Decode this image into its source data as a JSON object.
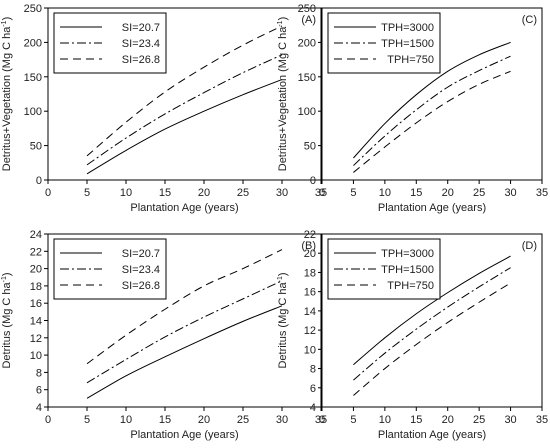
{
  "chart_data": [
    {
      "panel_label": "(A)",
      "type": "line",
      "xlabel": "Plantation Age (years)",
      "ylabel": "Detritus+Vegetation  (Mg C ha⁻¹)",
      "xlim": [
        0,
        35
      ],
      "ylim": [
        0,
        250
      ],
      "xticks": [
        "0",
        "5",
        "10",
        "15",
        "20",
        "25",
        "30",
        "35"
      ],
      "yticks": [
        "0",
        "50",
        "100",
        "150",
        "200",
        "250"
      ],
      "grid": false,
      "legend": "top-left",
      "x": [
        5,
        10,
        15,
        20,
        25,
        30
      ],
      "series": [
        {
          "name": "SI=20.7",
          "dash": "solid",
          "values": [
            9,
            43,
            74,
            100,
            124,
            146
          ]
        },
        {
          "name": "SI=23.4",
          "dash": "dashdot",
          "values": [
            22,
            61,
            96,
            127,
            156,
            182
          ]
        },
        {
          "name": "SI=26.8",
          "dash": "dashed",
          "values": [
            35,
            84,
            128,
            164,
            196,
            224
          ]
        }
      ]
    },
    {
      "panel_label": "(C)",
      "type": "line",
      "xlabel": "Plantation Age (years)",
      "ylabel": "Detritus+Vegetation  (Mg C ha⁻¹)",
      "xlim": [
        0,
        35
      ],
      "ylim": [
        0,
        250
      ],
      "xticks": [
        "0",
        "5",
        "10",
        "15",
        "20",
        "25",
        "30",
        "35"
      ],
      "yticks": [
        "0",
        "50",
        "100",
        "150",
        "200",
        "250"
      ],
      "grid": false,
      "legend": "top-left",
      "x": [
        5,
        10,
        15,
        20,
        25,
        30
      ],
      "series": [
        {
          "name": "TPH=3000",
          "dash": "solid",
          "values": [
            32,
            82,
            124,
            158,
            182,
            200
          ]
        },
        {
          "name": "TPH=1500",
          "dash": "dashdot",
          "values": [
            21,
            64,
            102,
            135,
            159,
            180
          ]
        },
        {
          "name": "TPH=750",
          "dash": "dashed",
          "values": [
            11,
            48,
            83,
            114,
            139,
            158
          ]
        }
      ]
    },
    {
      "panel_label": "(B)",
      "type": "line",
      "xlabel": "Plantation Age (years)",
      "ylabel": "Detritus (Mg C ha⁻¹)",
      "xlim": [
        0,
        35
      ],
      "ylim": [
        4,
        24
      ],
      "xticks": [
        "0",
        "5",
        "10",
        "15",
        "20",
        "25",
        "30",
        "35"
      ],
      "yticks": [
        "4",
        "6",
        "8",
        "10",
        "12",
        "14",
        "16",
        "18",
        "20",
        "22",
        "24"
      ],
      "grid": false,
      "legend": "top-left",
      "x": [
        5,
        10,
        15,
        20,
        25,
        30
      ],
      "series": [
        {
          "name": "SI=20.7",
          "dash": "solid",
          "values": [
            5.0,
            7.6,
            9.8,
            11.9,
            13.9,
            15.7
          ]
        },
        {
          "name": "SI=23.4",
          "dash": "dashdot",
          "values": [
            6.8,
            9.5,
            12.1,
            14.4,
            16.5,
            18.6
          ]
        },
        {
          "name": "SI=26.8",
          "dash": "dashed",
          "values": [
            9.0,
            12.3,
            15.3,
            18.0,
            20.0,
            22.2
          ]
        }
      ]
    },
    {
      "panel_label": "(D)",
      "type": "line",
      "xlabel": "Plantation Age (years)",
      "ylabel": "Detritus (Mg C ha⁻¹)",
      "xlim": [
        0,
        35
      ],
      "ylim": [
        4,
        22
      ],
      "xticks": [
        "0",
        "5",
        "10",
        "15",
        "20",
        "25",
        "30",
        "35"
      ],
      "yticks": [
        "4",
        "6",
        "8",
        "10",
        "12",
        "14",
        "16",
        "18",
        "20",
        "22"
      ],
      "grid": false,
      "legend": "top-left",
      "x": [
        5,
        10,
        15,
        20,
        25,
        30
      ],
      "series": [
        {
          "name": "TPH=3000",
          "dash": "solid",
          "values": [
            8.4,
            11.2,
            13.7,
            15.9,
            17.9,
            19.7
          ]
        },
        {
          "name": "TPH=1500",
          "dash": "dashdot",
          "values": [
            6.8,
            9.6,
            12.1,
            14.4,
            16.5,
            18.5
          ]
        },
        {
          "name": "TPH=750",
          "dash": "dashed",
          "values": [
            5.2,
            8.0,
            10.5,
            12.8,
            14.9,
            16.9
          ]
        }
      ]
    }
  ]
}
